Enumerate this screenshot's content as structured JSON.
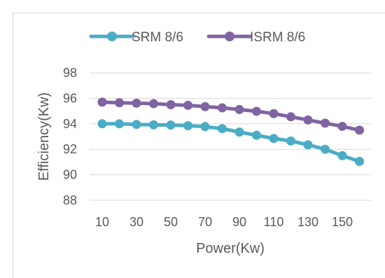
{
  "chart_data": {
    "type": "line",
    "xlabel": "Power(Kw)",
    "ylabel": "Efficiency(Kw)",
    "x": [
      10,
      20,
      30,
      40,
      50,
      60,
      70,
      80,
      90,
      100,
      110,
      120,
      130,
      140,
      150,
      160
    ],
    "x_tick_labels": [
      "10",
      "30",
      "50",
      "70",
      "90",
      "110",
      "130",
      "150"
    ],
    "y_tick_labels": [
      "88",
      "90",
      "92",
      "94",
      "96",
      "98"
    ],
    "ylim": [
      88,
      98
    ],
    "grid": "horizontal",
    "legend_position": "top",
    "series": [
      {
        "name": "SRM 8/6",
        "color": "#4BACC6",
        "values": [
          94.0,
          94.0,
          93.95,
          93.92,
          93.9,
          93.85,
          93.78,
          93.62,
          93.35,
          93.1,
          92.85,
          92.65,
          92.35,
          92.0,
          91.5,
          91.05
        ]
      },
      {
        "name": "ISRM 8/6",
        "color": "#8064A2",
        "values": [
          95.7,
          95.65,
          95.62,
          95.58,
          95.5,
          95.45,
          95.35,
          95.25,
          95.12,
          94.98,
          94.8,
          94.55,
          94.3,
          94.05,
          93.8,
          93.5
        ]
      }
    ]
  }
}
